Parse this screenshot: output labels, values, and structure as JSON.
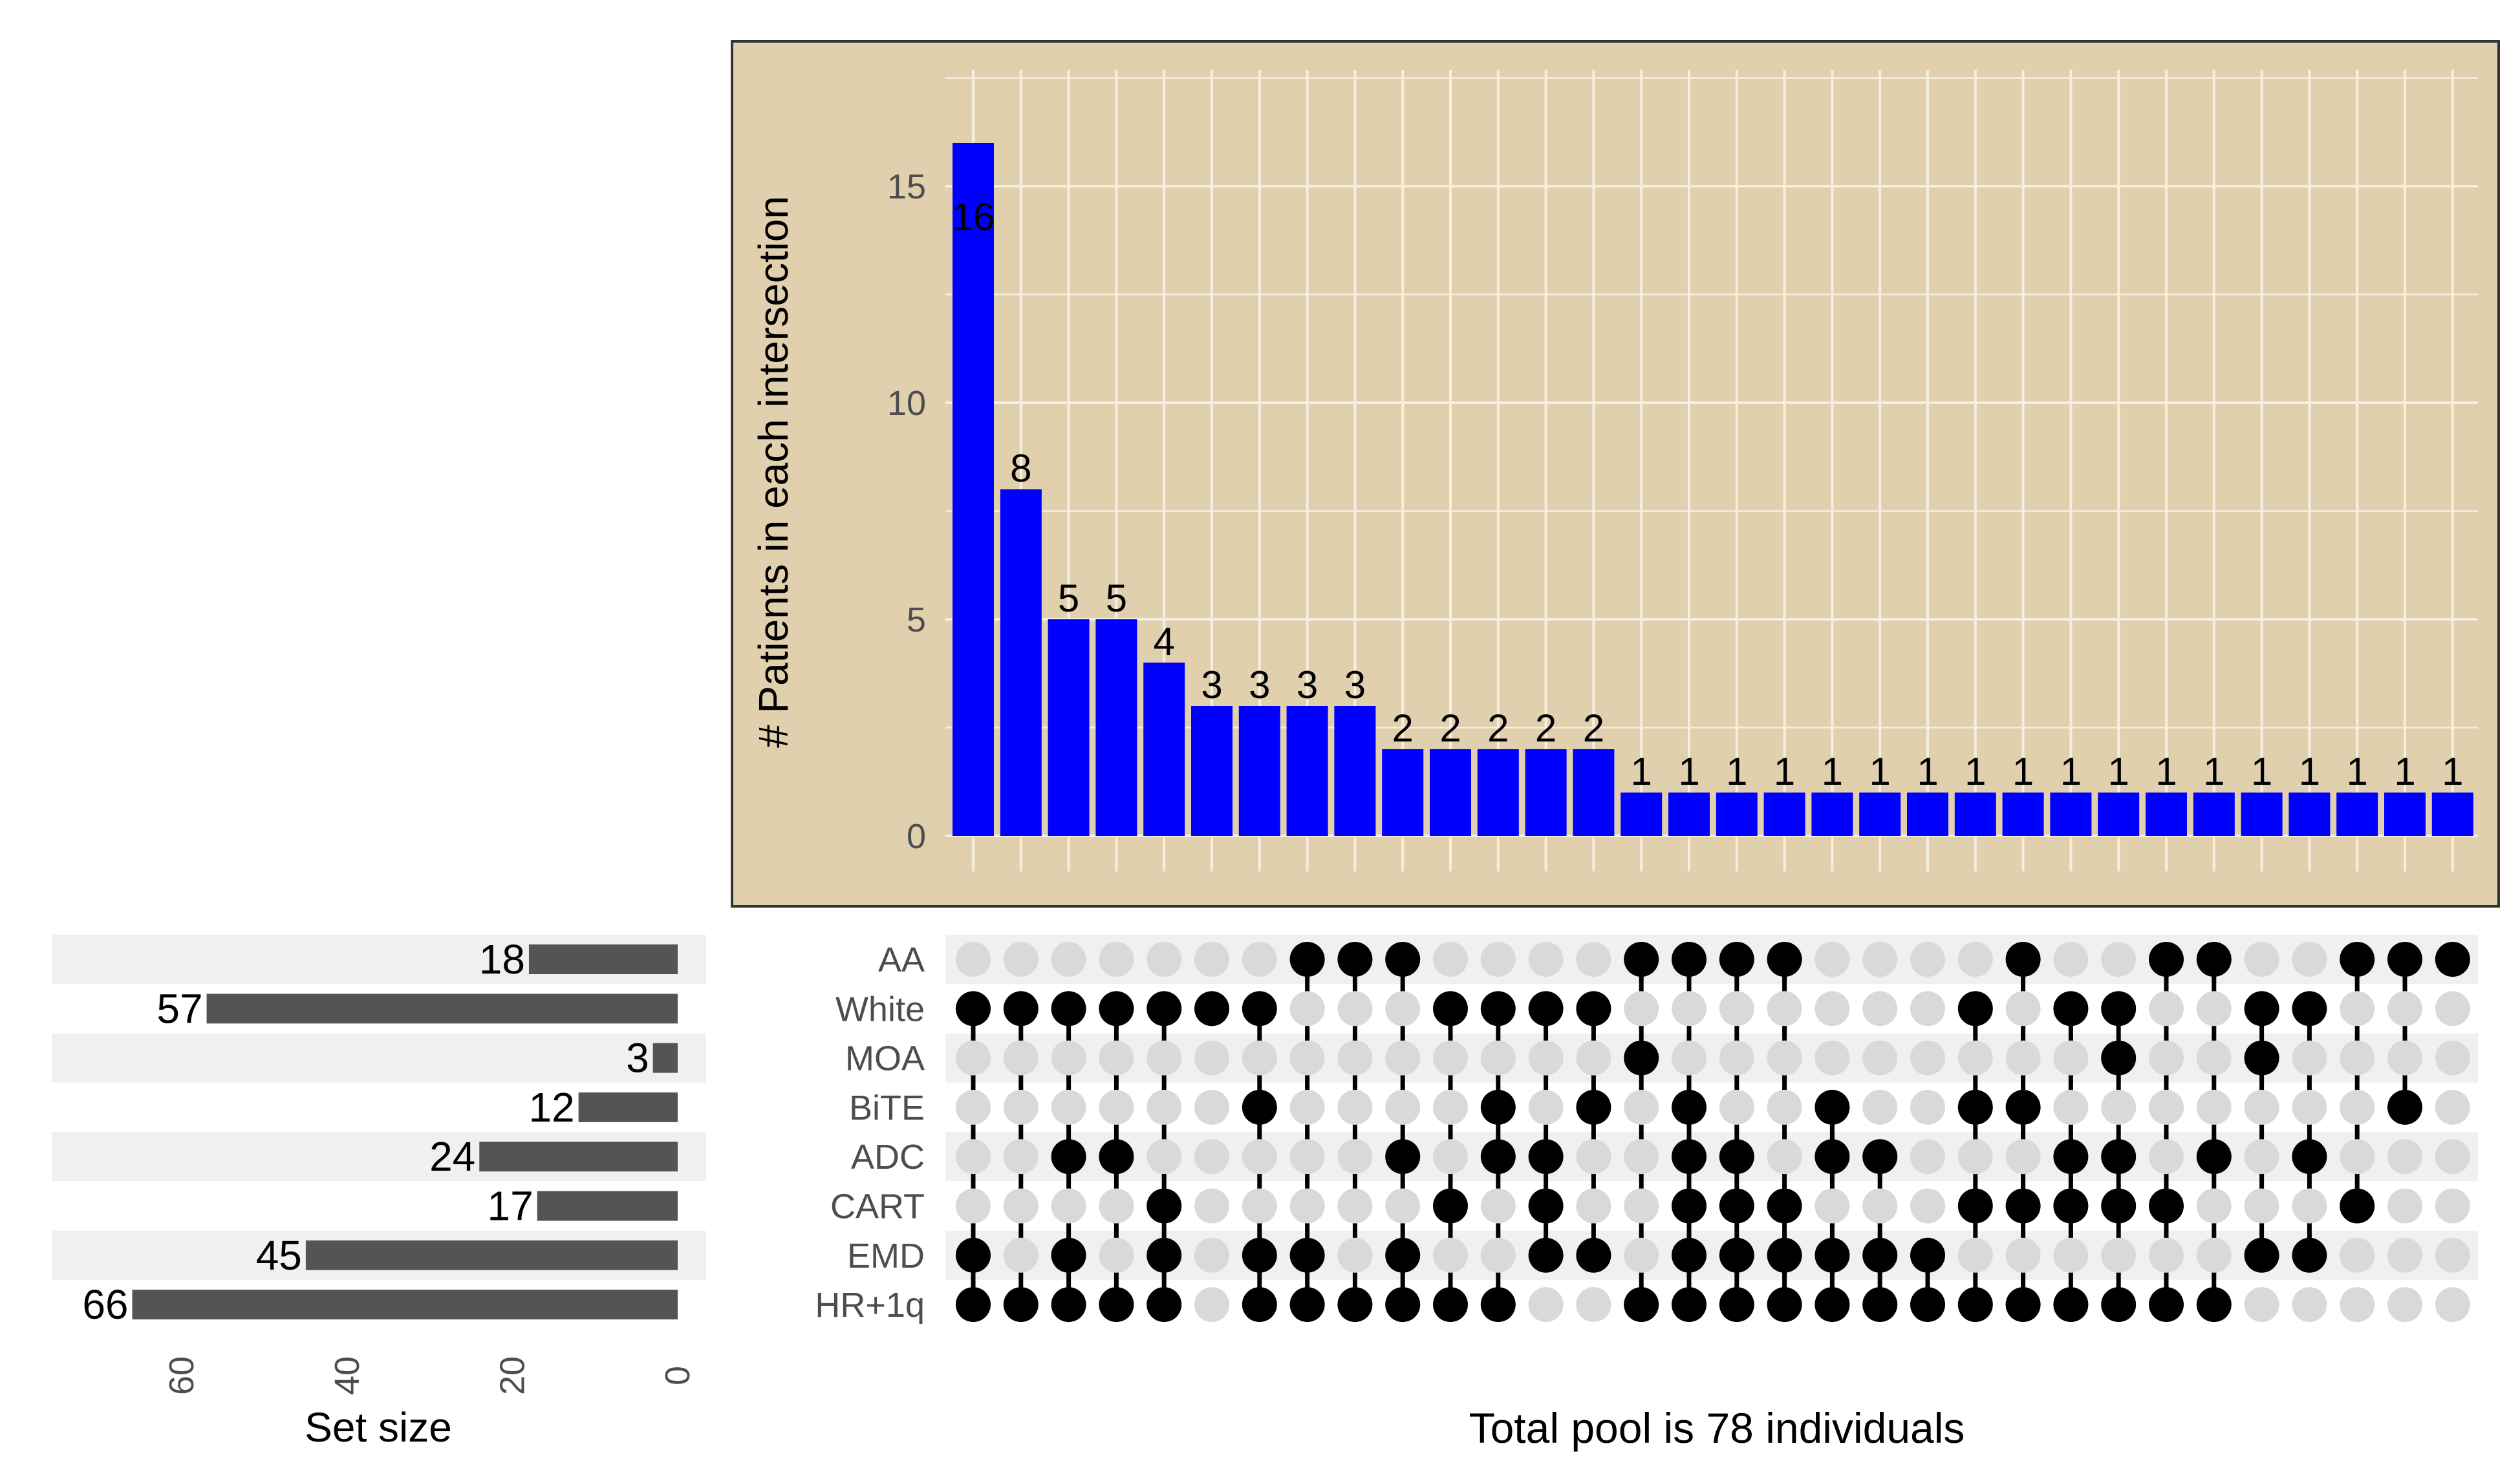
{
  "colors": {
    "panel_bg": "#e1d0ae",
    "panel_border": "#333333",
    "grid": "#f5efe2",
    "bar": "#0000ff",
    "set_bar": "#545454",
    "dot_on": "#000000",
    "dot_off": "#d9d9d9",
    "stripe": "#f0f0f0"
  },
  "chart_data": {
    "type": "upset",
    "ylabel": "# Patients in each intersection",
    "yticks": [
      0,
      5,
      10,
      15
    ],
    "ylim": [
      0,
      17.7
    ],
    "sets": [
      "AA",
      "White",
      "MOA",
      "BiTE",
      "ADC",
      "CART",
      "EMD",
      "HR+1q"
    ],
    "set_sizes": [
      18,
      57,
      3,
      12,
      24,
      17,
      45,
      66
    ],
    "set_size_axis": {
      "label": "Set size",
      "ticks": [
        60,
        40,
        20,
        0
      ],
      "max": 70
    },
    "intersections": [
      {
        "count": 16,
        "sets": [
          "White",
          "EMD",
          "HR+1q"
        ]
      },
      {
        "count": 8,
        "sets": [
          "White",
          "HR+1q"
        ]
      },
      {
        "count": 5,
        "sets": [
          "White",
          "ADC",
          "EMD",
          "HR+1q"
        ]
      },
      {
        "count": 5,
        "sets": [
          "White",
          "ADC",
          "HR+1q"
        ]
      },
      {
        "count": 4,
        "sets": [
          "White",
          "CART",
          "EMD",
          "HR+1q"
        ]
      },
      {
        "count": 3,
        "sets": [
          "White"
        ]
      },
      {
        "count": 3,
        "sets": [
          "White",
          "BiTE",
          "EMD",
          "HR+1q"
        ]
      },
      {
        "count": 3,
        "sets": [
          "AA",
          "EMD",
          "HR+1q"
        ]
      },
      {
        "count": 3,
        "sets": [
          "AA",
          "HR+1q"
        ]
      },
      {
        "count": 2,
        "sets": [
          "AA",
          "ADC",
          "EMD",
          "HR+1q"
        ]
      },
      {
        "count": 2,
        "sets": [
          "White",
          "CART",
          "HR+1q"
        ]
      },
      {
        "count": 2,
        "sets": [
          "White",
          "BiTE",
          "ADC",
          "HR+1q"
        ]
      },
      {
        "count": 2,
        "sets": [
          "White",
          "ADC",
          "CART",
          "EMD"
        ]
      },
      {
        "count": 2,
        "sets": [
          "White",
          "BiTE",
          "EMD"
        ]
      },
      {
        "count": 1,
        "sets": [
          "AA",
          "MOA",
          "HR+1q"
        ]
      },
      {
        "count": 1,
        "sets": [
          "AA",
          "BiTE",
          "ADC",
          "CART",
          "EMD",
          "HR+1q"
        ]
      },
      {
        "count": 1,
        "sets": [
          "AA",
          "ADC",
          "CART",
          "EMD",
          "HR+1q"
        ]
      },
      {
        "count": 1,
        "sets": [
          "AA",
          "CART",
          "EMD",
          "HR+1q"
        ]
      },
      {
        "count": 1,
        "sets": [
          "BiTE",
          "ADC",
          "EMD",
          "HR+1q"
        ]
      },
      {
        "count": 1,
        "sets": [
          "ADC",
          "EMD",
          "HR+1q"
        ]
      },
      {
        "count": 1,
        "sets": [
          "EMD",
          "HR+1q"
        ]
      },
      {
        "count": 1,
        "sets": [
          "White",
          "BiTE",
          "CART",
          "HR+1q"
        ]
      },
      {
        "count": 1,
        "sets": [
          "AA",
          "BiTE",
          "CART",
          "HR+1q"
        ]
      },
      {
        "count": 1,
        "sets": [
          "White",
          "ADC",
          "CART",
          "HR+1q"
        ]
      },
      {
        "count": 1,
        "sets": [
          "White",
          "MOA",
          "ADC",
          "CART",
          "HR+1q"
        ]
      },
      {
        "count": 1,
        "sets": [
          "AA",
          "CART",
          "HR+1q"
        ]
      },
      {
        "count": 1,
        "sets": [
          "AA",
          "ADC",
          "HR+1q"
        ]
      },
      {
        "count": 1,
        "sets": [
          "White",
          "MOA",
          "EMD"
        ]
      },
      {
        "count": 1,
        "sets": [
          "White",
          "ADC",
          "EMD"
        ]
      },
      {
        "count": 1,
        "sets": [
          "AA",
          "CART"
        ]
      },
      {
        "count": 1,
        "sets": [
          "AA",
          "BiTE"
        ]
      },
      {
        "count": 1,
        "sets": [
          "AA"
        ]
      }
    ]
  },
  "footer": {
    "caption": "Total pool is 78 individuals"
  }
}
